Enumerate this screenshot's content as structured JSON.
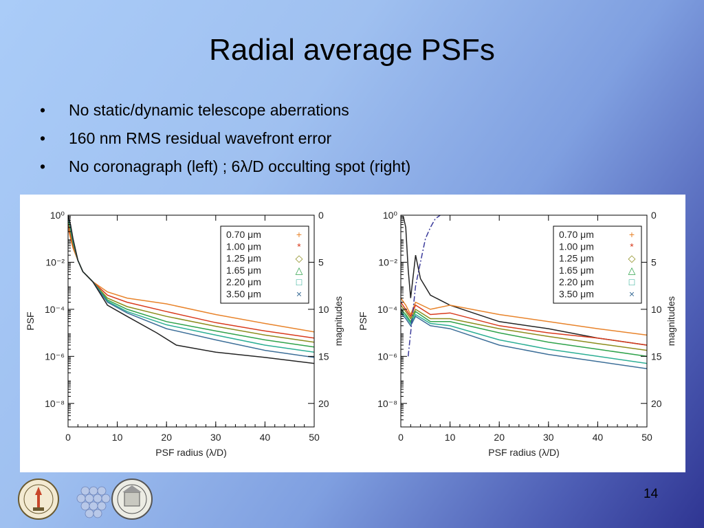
{
  "slide": {
    "title": "Radial average PSFs",
    "bullets": [
      "No static/dynamic telescope aberrations",
      "160 nm RMS residual wavefront error",
      "No coronagraph (left) ; 6λ/D occulting spot (right)"
    ],
    "page_number": "14"
  },
  "colors": {
    "0.70": "#e8832a",
    "1.00": "#d83a1c",
    "1.25": "#8c8c1c",
    "1.65": "#2ea24a",
    "2.20": "#2bae94",
    "3.50": "#3c6e98",
    "black": "#222222",
    "spot": "#3a3a9a"
  },
  "chart_data": [
    {
      "type": "line",
      "title": "",
      "xlabel": "PSF radius (λ/D)",
      "ylabel": "PSF",
      "y2label": "magnitudes",
      "xlim": [
        0,
        50
      ],
      "ylim": [
        1e-09,
        1
      ],
      "yscale": "log",
      "xticks": [
        0,
        10,
        20,
        30,
        40,
        50
      ],
      "yticks": [
        {
          "v": 1,
          "label": "10⁰"
        },
        {
          "v": 0.01,
          "label": "10⁻²"
        },
        {
          "v": 0.0001,
          "label": "10⁻⁴"
        },
        {
          "v": 1e-06,
          "label": "10⁻⁶"
        },
        {
          "v": 1e-08,
          "label": "10⁻⁸"
        }
      ],
      "y2ticks": [
        {
          "mag": 0,
          "label": "0"
        },
        {
          "mag": 5,
          "label": "5"
        },
        {
          "mag": 10,
          "label": "10"
        },
        {
          "mag": 15,
          "label": "15"
        },
        {
          "mag": 20,
          "label": "20"
        }
      ],
      "legend_position": "top-right",
      "legend": [
        {
          "label": "0.70  μm",
          "symbol": "+",
          "color_key": "0.70"
        },
        {
          "label": "1.00  μm",
          "symbol": "*",
          "color_key": "1.00"
        },
        {
          "label": "1.25  μm",
          "symbol": "◇",
          "color_key": "1.25"
        },
        {
          "label": "1.65  μm",
          "symbol": "△",
          "color_key": "1.65"
        },
        {
          "label": "2.20  μm",
          "symbol": "□",
          "color_key": "2.20"
        },
        {
          "label": "3.50  μm",
          "symbol": "×",
          "color_key": "3.50"
        }
      ],
      "series": [
        {
          "color_key": "0.70",
          "x": [
            0,
            0.5,
            1,
            2,
            3,
            5,
            8,
            12,
            20,
            30,
            40,
            50
          ],
          "y": [
            0.3,
            0.1,
            0.04,
            0.012,
            0.004,
            0.0015,
            0.00055,
            0.0003,
            0.00017,
            6e-05,
            2.5e-05,
            1.1e-05
          ]
        },
        {
          "color_key": "1.00",
          "x": [
            0,
            0.5,
            1,
            2,
            3,
            5,
            8,
            12,
            20,
            30,
            40,
            50
          ],
          "y": [
            0.5,
            0.15,
            0.05,
            0.012,
            0.004,
            0.0015,
            0.0004,
            0.0002,
            8e-05,
            2.7e-05,
            1.2e-05,
            6e-06
          ]
        },
        {
          "color_key": "1.25",
          "x": [
            0,
            0.5,
            1,
            2,
            3,
            5,
            8,
            12,
            20,
            30,
            40,
            50
          ],
          "y": [
            0.6,
            0.2,
            0.06,
            0.012,
            0.004,
            0.0015,
            0.0003,
            0.00013,
            5e-05,
            1.9e-05,
            8e-06,
            4e-06
          ]
        },
        {
          "color_key": "1.65",
          "x": [
            0,
            0.5,
            1,
            2,
            3,
            5,
            8,
            12,
            20,
            30,
            40,
            50
          ],
          "y": [
            0.75,
            0.25,
            0.07,
            0.012,
            0.004,
            0.0015,
            0.00025,
            0.0001,
            3e-05,
            1.2e-05,
            5e-06,
            2.5e-06
          ]
        },
        {
          "color_key": "2.20",
          "x": [
            0,
            0.5,
            1,
            2,
            3,
            5,
            8,
            12,
            20,
            30,
            40,
            50
          ],
          "y": [
            0.85,
            0.3,
            0.08,
            0.012,
            0.004,
            0.0015,
            0.00022,
            8e-05,
            2.2e-05,
            8e-06,
            3e-06,
            1.5e-06
          ]
        },
        {
          "color_key": "3.50",
          "x": [
            0,
            0.5,
            1,
            2,
            3,
            5,
            8,
            12,
            20,
            30,
            40,
            50
          ],
          "y": [
            0.9,
            0.35,
            0.09,
            0.012,
            0.004,
            0.0015,
            0.0002,
            7e-05,
            1.5e-05,
            5e-06,
            1.8e-06,
            9e-07
          ]
        },
        {
          "color_key": "black",
          "x": [
            0,
            0.5,
            1,
            2,
            3,
            5,
            8,
            12,
            18,
            22,
            30,
            40,
            50
          ],
          "y": [
            1,
            0.4,
            0.1,
            0.012,
            0.004,
            0.0015,
            0.00015,
            5e-05,
            1e-05,
            3e-06,
            1.5e-06,
            9e-07,
            5e-07
          ]
        }
      ]
    },
    {
      "type": "line",
      "title": "",
      "xlabel": "PSF radius (λ/D)",
      "ylabel": "PSF",
      "y2label": "magnitudes",
      "xlim": [
        0,
        50
      ],
      "ylim": [
        1e-09,
        1
      ],
      "yscale": "log",
      "xticks": [
        0,
        10,
        20,
        30,
        40,
        50
      ],
      "yticks": [
        {
          "v": 1,
          "label": "10⁰"
        },
        {
          "v": 0.01,
          "label": "10⁻²"
        },
        {
          "v": 0.0001,
          "label": "10⁻⁴"
        },
        {
          "v": 1e-06,
          "label": "10⁻⁶"
        },
        {
          "v": 1e-08,
          "label": "10⁻⁸"
        }
      ],
      "y2ticks": [
        {
          "mag": 0,
          "label": "0"
        },
        {
          "mag": 5,
          "label": "5"
        },
        {
          "mag": 10,
          "label": "10"
        },
        {
          "mag": 15,
          "label": "15"
        },
        {
          "mag": 20,
          "label": "20"
        }
      ],
      "legend_position": "top-right",
      "legend": [
        {
          "label": "0.70  μm",
          "symbol": "+",
          "color_key": "0.70"
        },
        {
          "label": "1.00  μm",
          "symbol": "*",
          "color_key": "1.00"
        },
        {
          "label": "1.25  μm",
          "symbol": "◇",
          "color_key": "1.25"
        },
        {
          "label": "1.65  μm",
          "symbol": "△",
          "color_key": "1.65"
        },
        {
          "label": "2.20  μm",
          "symbol": "□",
          "color_key": "2.20"
        },
        {
          "label": "3.50  μm",
          "symbol": "×",
          "color_key": "3.50"
        }
      ],
      "series": [
        {
          "color_key": "black",
          "x": [
            0.5,
            1,
            1.5,
            2,
            3,
            4,
            6,
            10,
            20,
            30,
            40,
            50
          ],
          "y": [
            0.9,
            0.3,
            0.005,
            0.0003,
            0.02,
            0.002,
            0.0004,
            0.00015,
            3e-05,
            1.5e-05,
            6e-06,
            3e-06
          ]
        },
        {
          "color_key": "0.70",
          "x": [
            0,
            1,
            2,
            3,
            6,
            10,
            20,
            30,
            40,
            50
          ],
          "y": [
            0.0003,
            0.00015,
            6e-05,
            0.0002,
            0.0001,
            0.00015,
            6e-05,
            3e-05,
            1.5e-05,
            8e-06
          ]
        },
        {
          "color_key": "1.00",
          "x": [
            0,
            1,
            2,
            3,
            6,
            10,
            20,
            30,
            40,
            50
          ],
          "y": [
            0.0002,
            0.0001,
            5e-05,
            0.00015,
            6e-05,
            7e-05,
            2e-05,
            1e-05,
            6e-06,
            3e-06
          ]
        },
        {
          "color_key": "1.25",
          "x": [
            0,
            1,
            2,
            3,
            6,
            10,
            20,
            30,
            40,
            50
          ],
          "y": [
            0.00015,
            8e-05,
            4e-05,
            0.0001,
            4e-05,
            4e-05,
            1.5e-05,
            7e-06,
            3.5e-06,
            1.8e-06
          ]
        },
        {
          "color_key": "1.65",
          "x": [
            0,
            1,
            2,
            3,
            6,
            10,
            20,
            30,
            40,
            50
          ],
          "y": [
            0.0001,
            6e-05,
            3e-05,
            8e-05,
            3e-05,
            3e-05,
            1e-05,
            4e-06,
            2e-06,
            1e-06
          ]
        },
        {
          "color_key": "2.20",
          "x": [
            0,
            1,
            2,
            3,
            6,
            10,
            20,
            30,
            40,
            50
          ],
          "y": [
            8e-05,
            5e-05,
            2.5e-05,
            6e-05,
            2.5e-05,
            2e-05,
            5e-06,
            2e-06,
            1e-06,
            5e-07
          ]
        },
        {
          "color_key": "3.50",
          "x": [
            0,
            1,
            2,
            3,
            6,
            10,
            20,
            30,
            40,
            50
          ],
          "y": [
            7e-05,
            4e-05,
            2e-05,
            5e-05,
            2e-05,
            1.5e-05,
            3e-06,
            1.2e-06,
            6e-07,
            3e-07
          ]
        },
        {
          "color_key": "spot",
          "style": "dashdot",
          "x": [
            1.5,
            2,
            3,
            4,
            5,
            6,
            7,
            8
          ],
          "y": [
            1e-06,
            1e-05,
            0.001,
            0.01,
            0.1,
            0.3,
            0.7,
            1
          ]
        }
      ]
    }
  ]
}
